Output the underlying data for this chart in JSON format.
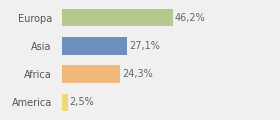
{
  "categories": [
    "Europa",
    "Asia",
    "Africa",
    "America"
  ],
  "values": [
    46.2,
    27.1,
    24.3,
    2.5
  ],
  "labels": [
    "46,2%",
    "27,1%",
    "24,3%",
    "2,5%"
  ],
  "bar_colors": [
    "#b5c98e",
    "#6f8fbf",
    "#f0b87a",
    "#f0d97a"
  ],
  "background_color": "#f0f0f0",
  "xlim": [
    0,
    65
  ],
  "label_fontsize": 7.0,
  "tick_fontsize": 7.0,
  "bar_height": 0.62
}
